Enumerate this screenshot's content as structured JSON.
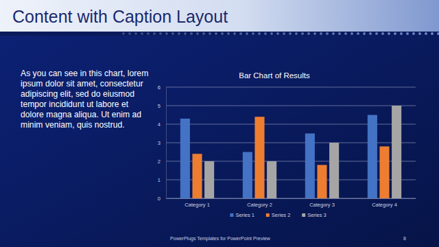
{
  "slide": {
    "title": "Content with Caption Layout",
    "caption": [
      "As you can see in this chart, lorem",
      "ipsum dolor sit amet, consectetur",
      "adipiscing elit, sed do eiusmod",
      "tempor incididunt ut labore et",
      "dolore magna aliqua. Ut enim ad",
      "minim veniam, quis nostrud."
    ],
    "footer": "PowerPlugs Templates for PowerPoint Preview",
    "page_number": "8"
  },
  "chart_data": {
    "type": "bar",
    "title": "Bar Chart of Results",
    "categories": [
      "Category 1",
      "Category 2",
      "Category 3",
      "Category 4"
    ],
    "series": [
      {
        "name": "Series 1",
        "color": "#4472c4",
        "values": [
          4.3,
          2.5,
          3.5,
          4.5
        ]
      },
      {
        "name": "Series 2",
        "color": "#ed7d31",
        "values": [
          2.4,
          4.4,
          1.8,
          2.8
        ]
      },
      {
        "name": "Series 3",
        "color": "#a5a5a5",
        "values": [
          2,
          2,
          3,
          5
        ]
      }
    ],
    "ylim": [
      0,
      6
    ],
    "yticks": [
      0,
      1,
      2,
      3,
      4,
      5,
      6
    ],
    "grid": true,
    "legend": "bottom"
  }
}
